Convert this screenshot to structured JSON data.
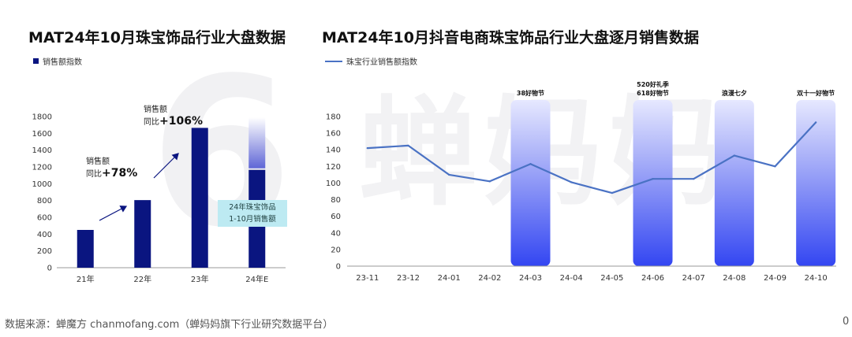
{
  "watermark": {
    "left": "6",
    "right": "蝉妈妈"
  },
  "footer": {
    "source": "数据来源：蝉魔方 chanmofang.com（蝉妈妈旗下行业研究数据平台）",
    "page": "0"
  },
  "colors": {
    "bar": "#0a1580",
    "line": "#4a72c4",
    "highlight": "#3a4cf0",
    "callout": "#bdeaf2"
  },
  "chart_data": [
    {
      "type": "bar",
      "title": "MAT24年10月珠宝饰品行业大盘数据",
      "legend": [
        "销售额指数"
      ],
      "categories": [
        "21年",
        "22年",
        "23年",
        "24年E"
      ],
      "values": [
        450,
        805,
        1665,
        1165
      ],
      "estimate_total": 1790,
      "ylim": [
        0,
        1800
      ],
      "yticks": [
        "0",
        "200",
        "400",
        "600",
        "800",
        "1000",
        "1200",
        "1400",
        "1600",
        "1800"
      ],
      "annotations": [
        {
          "line1": "销售额",
          "prefix": "同比",
          "growth": "+78%"
        },
        {
          "line1": "销售额",
          "prefix": "同比",
          "growth": "+106%"
        }
      ],
      "callout": {
        "line1": "24年珠宝饰品",
        "line2": "1-10月销售额"
      }
    },
    {
      "type": "line",
      "title": "MAT24年10月抖音电商珠宝饰品行业大盘逐月销售数据",
      "legend": [
        "珠宝行业销售额指数"
      ],
      "x": [
        "23-11",
        "23-12",
        "24-01",
        "24-02",
        "24-03",
        "24-04",
        "24-05",
        "24-06",
        "24-07",
        "24-08",
        "24-09",
        "24-10"
      ],
      "values": [
        142,
        145,
        110,
        102,
        123,
        101,
        88,
        105,
        105,
        133,
        120,
        173
      ],
      "ylim": [
        0,
        180
      ],
      "yticks": [
        "0",
        "20",
        "40",
        "60",
        "80",
        "100",
        "120",
        "140",
        "160",
        "180"
      ],
      "events": [
        {
          "x": "24-03",
          "label": [
            "38好物节"
          ]
        },
        {
          "x": "24-06",
          "label": [
            "520好礼季",
            "618好物节"
          ]
        },
        {
          "x": "24-08",
          "label": [
            "浪漫七夕"
          ]
        },
        {
          "x": "24-10",
          "label": [
            "双十一好物节"
          ]
        }
      ]
    }
  ]
}
